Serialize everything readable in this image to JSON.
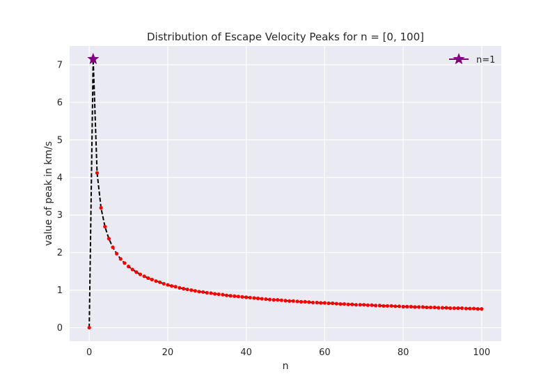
{
  "chart_data": {
    "type": "line",
    "title": "Distribution of Escape Velocity Peaks for n = [0, 100]",
    "xlabel": "n",
    "ylabel": "value of peak in km/s",
    "xlim": [
      -5,
      105
    ],
    "ylim": [
      -0.36,
      7.5
    ],
    "xticks": [
      0,
      20,
      40,
      60,
      80,
      100
    ],
    "yticks": [
      0,
      1,
      2,
      3,
      4,
      5,
      6,
      7
    ],
    "grid": true,
    "style": "seaborn-darkgrid",
    "legend": {
      "position": "top-right",
      "entries": [
        "n=1"
      ]
    },
    "series": [
      {
        "marker": "dot",
        "line": "dashed",
        "line_color": "#000000",
        "marker_color": "#ff0000",
        "x": [
          0,
          1,
          2,
          3,
          4,
          5,
          6,
          7,
          8,
          9,
          10,
          11,
          12,
          13,
          14,
          15,
          16,
          17,
          18,
          19,
          20,
          21,
          22,
          23,
          24,
          25,
          26,
          27,
          28,
          29,
          30,
          31,
          32,
          33,
          34,
          35,
          36,
          37,
          38,
          39,
          40,
          41,
          42,
          43,
          44,
          45,
          46,
          47,
          48,
          49,
          50,
          51,
          52,
          53,
          54,
          55,
          56,
          57,
          58,
          59,
          60,
          61,
          62,
          63,
          64,
          65,
          66,
          67,
          68,
          69,
          70,
          71,
          72,
          73,
          74,
          75,
          76,
          77,
          78,
          79,
          80,
          81,
          82,
          83,
          84,
          85,
          86,
          87,
          88,
          89,
          90,
          91,
          92,
          93,
          94,
          95,
          96,
          97,
          98,
          99,
          100
        ],
        "y": [
          0,
          7.15,
          4.12,
          3.19,
          2.69,
          2.37,
          2.14,
          1.97,
          1.83,
          1.72,
          1.63,
          1.55,
          1.48,
          1.42,
          1.37,
          1.32,
          1.28,
          1.24,
          1.21,
          1.17,
          1.14,
          1.11,
          1.09,
          1.06,
          1.04,
          1.02,
          1.0,
          0.98,
          0.96,
          0.95,
          0.93,
          0.92,
          0.9,
          0.89,
          0.88,
          0.86,
          0.85,
          0.84,
          0.83,
          0.82,
          0.81,
          0.8,
          0.79,
          0.78,
          0.77,
          0.76,
          0.75,
          0.74,
          0.74,
          0.73,
          0.72,
          0.71,
          0.71,
          0.7,
          0.69,
          0.69,
          0.68,
          0.67,
          0.67,
          0.66,
          0.66,
          0.65,
          0.65,
          0.64,
          0.63,
          0.63,
          0.62,
          0.62,
          0.61,
          0.61,
          0.61,
          0.6,
          0.6,
          0.59,
          0.59,
          0.58,
          0.58,
          0.58,
          0.57,
          0.57,
          0.56,
          0.56,
          0.56,
          0.55,
          0.55,
          0.55,
          0.54,
          0.54,
          0.54,
          0.53,
          0.53,
          0.53,
          0.52,
          0.52,
          0.52,
          0.52,
          0.51,
          0.51,
          0.51,
          0.5,
          0.5
        ]
      },
      {
        "name": "n=1",
        "marker": "star",
        "marker_color": "#800080",
        "x": [
          1
        ],
        "y": [
          7.15
        ]
      }
    ]
  }
}
